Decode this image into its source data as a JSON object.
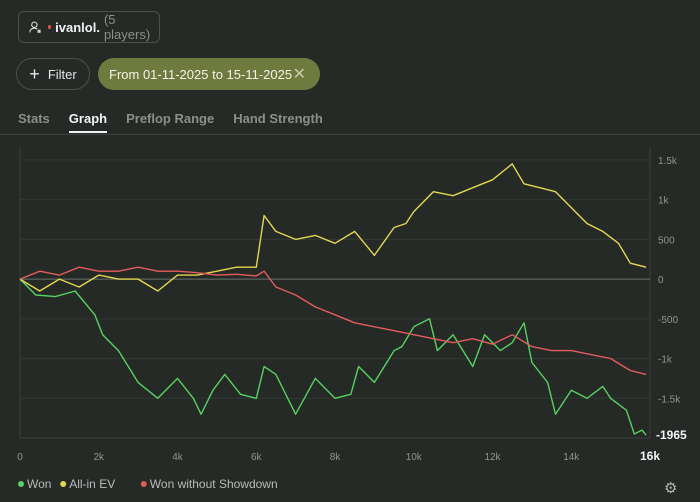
{
  "header": {
    "player_name": "ivanlol.",
    "player_count": "(5 players)",
    "filter_label": "Filter",
    "date_range": "From 01-11-2025 to 15-11-2025",
    "tabs": [
      "Stats",
      "Graph",
      "Preflop Range",
      "Hand Strength"
    ],
    "active_tab": "Graph"
  },
  "chart_data": {
    "type": "line",
    "x_ticks": [
      "0",
      "2k",
      "4k",
      "6k",
      "8k",
      "10k",
      "12k",
      "14k",
      "16k"
    ],
    "y_ticks": [
      "1.5k",
      "1k",
      "500",
      "0",
      "-500",
      "-1k",
      "-1.5k"
    ],
    "xlim": [
      0,
      16000
    ],
    "ylim": [
      -2000,
      1650
    ],
    "end_label": "-1965",
    "legend_position": "bottom-left",
    "series": [
      {
        "name": "Won",
        "color": "#57d15f",
        "x": [
          0,
          400,
          900,
          1400,
          1900,
          2100,
          2500,
          3000,
          3500,
          4000,
          4400,
          4600,
          4900,
          5200,
          5600,
          6000,
          6200,
          6500,
          7000,
          7500,
          8000,
          8400,
          8600,
          9000,
          9500,
          9700,
          10000,
          10400,
          10600,
          11000,
          11500,
          11800,
          12200,
          12500,
          12800,
          13000,
          13400,
          13600,
          14000,
          14400,
          14800,
          15000,
          15400,
          15600,
          15800,
          15900
        ],
        "y": [
          0,
          -200,
          -220,
          -150,
          -450,
          -700,
          -900,
          -1300,
          -1500,
          -1250,
          -1500,
          -1700,
          -1400,
          -1200,
          -1450,
          -1500,
          -1100,
          -1200,
          -1700,
          -1250,
          -1500,
          -1450,
          -1100,
          -1300,
          -900,
          -850,
          -600,
          -500,
          -900,
          -700,
          -1100,
          -700,
          -900,
          -800,
          -550,
          -1050,
          -1300,
          -1700,
          -1400,
          -1500,
          -1350,
          -1500,
          -1650,
          -1950,
          -1900,
          -1965
        ]
      },
      {
        "name": "All-in EV",
        "color": "#e2d84e",
        "x": [
          0,
          500,
          1000,
          1500,
          2000,
          2500,
          3000,
          3500,
          4000,
          4500,
          5000,
          5500,
          6000,
          6200,
          6500,
          7000,
          7500,
          8000,
          8500,
          9000,
          9500,
          9800,
          10000,
          10500,
          11000,
          11500,
          12000,
          12500,
          12800,
          13200,
          13600,
          14000,
          14400,
          14800,
          15200,
          15500,
          15900
        ],
        "y": [
          0,
          -150,
          0,
          -100,
          50,
          0,
          0,
          -150,
          50,
          50,
          100,
          150,
          150,
          800,
          600,
          500,
          550,
          450,
          600,
          300,
          650,
          700,
          850,
          1100,
          1050,
          1150,
          1250,
          1450,
          1200,
          1150,
          1100,
          900,
          700,
          600,
          450,
          200,
          150
        ]
      },
      {
        "name": "Won without Showdown",
        "color": "#e35c5c",
        "x": [
          0,
          500,
          1000,
          1500,
          2000,
          2500,
          3000,
          3500,
          4000,
          4500,
          5000,
          5500,
          6000,
          6200,
          6500,
          7000,
          7500,
          8000,
          8500,
          9000,
          9500,
          10000,
          10500,
          11000,
          11500,
          12000,
          12500,
          13000,
          13500,
          14000,
          14500,
          15000,
          15500,
          15900
        ],
        "y": [
          0,
          100,
          50,
          150,
          100,
          100,
          150,
          100,
          100,
          80,
          50,
          60,
          40,
          100,
          -100,
          -200,
          -350,
          -450,
          -550,
          -600,
          -650,
          -700,
          -750,
          -800,
          -750,
          -820,
          -700,
          -850,
          -900,
          -900,
          -950,
          -1000,
          -1150,
          -1200
        ]
      }
    ]
  }
}
